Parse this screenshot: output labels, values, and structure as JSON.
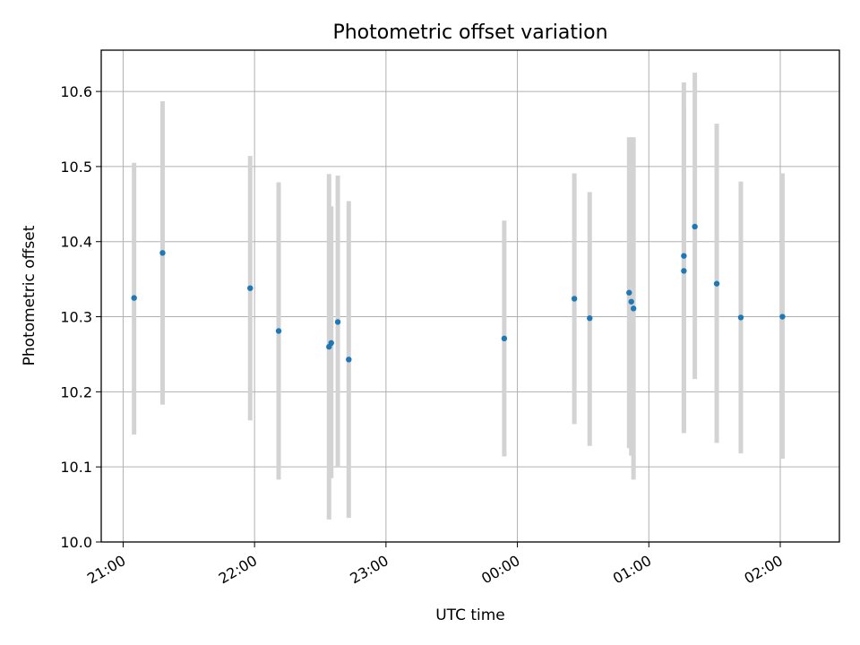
{
  "chart_data": {
    "type": "scatter",
    "title": "Photometric offset variation",
    "xlabel": "UTC time",
    "ylabel": "Photometric offset",
    "ylim": [
      10.0,
      10.655
    ],
    "xlim": [
      "20:50",
      "02:27"
    ],
    "x_ticks": [
      "21:00",
      "22:00",
      "23:00",
      "00:00",
      "01:00",
      "02:00"
    ],
    "y_ticks": [
      "10.0",
      "10.1",
      "10.2",
      "10.3",
      "10.4",
      "10.5",
      "10.6"
    ],
    "grid": true,
    "marker_color": "#1f77b4",
    "errorbar_color": "#d3d3d3",
    "points": [
      {
        "x": "21:05",
        "y": 10.325,
        "ylo": 10.143,
        "yhi": 10.505
      },
      {
        "x": "21:18",
        "y": 10.385,
        "ylo": 10.183,
        "yhi": 10.587
      },
      {
        "x": "21:58",
        "y": 10.338,
        "ylo": 10.162,
        "yhi": 10.514
      },
      {
        "x": "22:11",
        "y": 10.281,
        "ylo": 10.083,
        "yhi": 10.479
      },
      {
        "x": "22:34",
        "y": 10.26,
        "ylo": 10.03,
        "yhi": 10.49
      },
      {
        "x": "22:35",
        "y": 10.265,
        "ylo": 10.085,
        "yhi": 10.447
      },
      {
        "x": "22:38",
        "y": 10.293,
        "ylo": 10.099,
        "yhi": 10.488
      },
      {
        "x": "22:43",
        "y": 10.243,
        "ylo": 10.032,
        "yhi": 10.454
      },
      {
        "x": "23:54",
        "y": 10.271,
        "ylo": 10.114,
        "yhi": 10.428
      },
      {
        "x": "00:26",
        "y": 10.324,
        "ylo": 10.157,
        "yhi": 10.491
      },
      {
        "x": "00:33",
        "y": 10.298,
        "ylo": 10.128,
        "yhi": 10.466
      },
      {
        "x": "00:51",
        "y": 10.332,
        "ylo": 10.125,
        "yhi": 10.539
      },
      {
        "x": "00:52",
        "y": 10.32,
        "ylo": 10.115,
        "yhi": 10.539
      },
      {
        "x": "00:53",
        "y": 10.311,
        "ylo": 10.083,
        "yhi": 10.539
      },
      {
        "x": "01:16",
        "y": 10.381,
        "ylo": 10.15,
        "yhi": 10.612
      },
      {
        "x": "01:16",
        "y": 10.361,
        "ylo": 10.145,
        "yhi": 10.577
      },
      {
        "x": "01:21",
        "y": 10.42,
        "ylo": 10.217,
        "yhi": 10.625
      },
      {
        "x": "01:31",
        "y": 10.344,
        "ylo": 10.132,
        "yhi": 10.557
      },
      {
        "x": "01:42",
        "y": 10.299,
        "ylo": 10.118,
        "yhi": 10.48
      },
      {
        "x": "02:01",
        "y": 10.3,
        "ylo": 10.111,
        "yhi": 10.491
      }
    ]
  }
}
